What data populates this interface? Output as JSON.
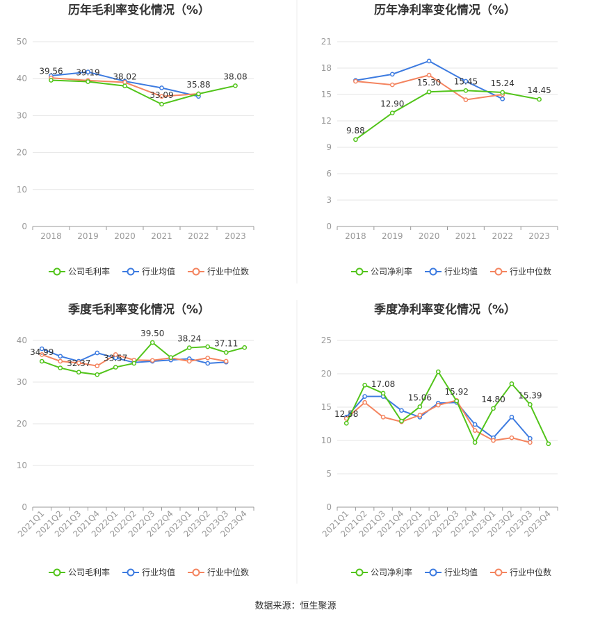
{
  "source": "数据来源：恒生聚源",
  "colors": {
    "company": "#52c41a",
    "industry_avg": "#3d7be0",
    "industry_median": "#f4845f",
    "grid": "#e6e6e6",
    "axis": "#999999",
    "divider": "#eeeeee"
  },
  "chart_data": [
    {
      "type": "line",
      "title": "历年毛利率变化情况（%）",
      "categories": [
        "2018",
        "2019",
        "2020",
        "2021",
        "2022",
        "2023"
      ],
      "ylim": [
        0,
        50
      ],
      "yticks": [
        0,
        10,
        20,
        30,
        40,
        50
      ],
      "grid": true,
      "legend_position": "bottom",
      "series": [
        {
          "name": "公司毛利率",
          "key": "company",
          "values": [
            39.56,
            39.19,
            38.02,
            33.09,
            35.88,
            38.08
          ]
        },
        {
          "name": "行业均值",
          "key": "industry_avg",
          "values": [
            40.8,
            41.8,
            39.3,
            37.5,
            35.2,
            null
          ]
        },
        {
          "name": "行业中位数",
          "key": "industry_median",
          "values": [
            40.2,
            39.5,
            39.0,
            35.2,
            35.9,
            null
          ]
        }
      ],
      "data_labels": [
        {
          "index": 0,
          "text": "39.56"
        },
        {
          "index": 1,
          "text": "39.19"
        },
        {
          "index": 2,
          "text": "38.02"
        },
        {
          "index": 3,
          "text": "33.09"
        },
        {
          "index": 4,
          "text": "35.88"
        },
        {
          "index": 5,
          "text": "38.08"
        }
      ]
    },
    {
      "type": "line",
      "title": "历年净利率变化情况（%）",
      "categories": [
        "2018",
        "2019",
        "2020",
        "2021",
        "2022",
        "2023"
      ],
      "ylim": [
        0,
        21
      ],
      "yticks": [
        0,
        3,
        6,
        9,
        12,
        15,
        18,
        21
      ],
      "grid": true,
      "legend_position": "bottom",
      "series": [
        {
          "name": "公司净利率",
          "key": "company",
          "values": [
            9.88,
            12.9,
            15.3,
            15.45,
            15.24,
            14.45
          ]
        },
        {
          "name": "行业均值",
          "key": "industry_avg",
          "values": [
            16.6,
            17.3,
            18.8,
            16.5,
            14.5,
            null
          ]
        },
        {
          "name": "行业中位数",
          "key": "industry_median",
          "values": [
            16.5,
            16.1,
            17.2,
            14.4,
            15.0,
            null
          ]
        }
      ],
      "data_labels": [
        {
          "index": 0,
          "text": "9.88"
        },
        {
          "index": 1,
          "text": "12.90"
        },
        {
          "index": 2,
          "text": "15.30"
        },
        {
          "index": 3,
          "text": "15.45"
        },
        {
          "index": 4,
          "text": "15.24"
        },
        {
          "index": 5,
          "text": "14.45"
        }
      ]
    },
    {
      "type": "line",
      "title": "季度毛利率变化情况（%）",
      "categories": [
        "2021Q1",
        "2021Q2",
        "2021Q3",
        "2021Q4",
        "2022Q1",
        "2022Q2",
        "2022Q3",
        "2022Q4",
        "2023Q1",
        "2023Q2",
        "2023Q3",
        "2023Q4"
      ],
      "ylim": [
        0,
        40
      ],
      "yticks": [
        0,
        10,
        20,
        30,
        40
      ],
      "grid": true,
      "legend_position": "bottom",
      "series": [
        {
          "name": "公司毛利率",
          "key": "company",
          "values": [
            34.99,
            33.4,
            32.37,
            31.8,
            33.57,
            34.5,
            39.5,
            35.9,
            38.24,
            38.5,
            37.11,
            38.3
          ]
        },
        {
          "name": "行业均值",
          "key": "industry_avg",
          "values": [
            38.0,
            36.2,
            35.0,
            37.0,
            35.8,
            34.7,
            35.0,
            35.3,
            35.6,
            34.5,
            34.8,
            null
          ]
        },
        {
          "name": "行业中位数",
          "key": "industry_median",
          "values": [
            36.6,
            35.0,
            34.6,
            33.9,
            36.6,
            35.3,
            35.2,
            35.8,
            35.0,
            35.8,
            35.0,
            null
          ]
        }
      ],
      "data_labels": [
        {
          "index": 0,
          "text": "34.99"
        },
        {
          "index": 2,
          "text": "32.37"
        },
        {
          "index": 4,
          "text": "33.57"
        },
        {
          "index": 6,
          "text": "39.50"
        },
        {
          "index": 8,
          "text": "38.24"
        },
        {
          "index": 10,
          "text": "37.11"
        }
      ]
    },
    {
      "type": "line",
      "title": "季度净利率变化情况（%）",
      "categories": [
        "2021Q1",
        "2021Q2",
        "2021Q3",
        "2021Q4",
        "2022Q1",
        "2022Q2",
        "2022Q3",
        "2022Q4",
        "2023Q1",
        "2023Q2",
        "2023Q3",
        "2023Q4"
      ],
      "ylim": [
        0,
        25
      ],
      "yticks": [
        0,
        5,
        10,
        15,
        20,
        25
      ],
      "grid": true,
      "legend_position": "bottom",
      "series": [
        {
          "name": "公司净利率",
          "key": "company",
          "values": [
            12.58,
            18.3,
            17.08,
            12.9,
            15.06,
            20.3,
            15.92,
            9.7,
            14.8,
            18.5,
            15.39,
            9.5
          ]
        },
        {
          "name": "行业均值",
          "key": "industry_avg",
          "values": [
            13.5,
            16.6,
            16.6,
            14.5,
            13.5,
            15.6,
            15.7,
            12.4,
            10.4,
            13.5,
            10.3,
            null
          ]
        },
        {
          "name": "行业中位数",
          "key": "industry_median",
          "values": [
            13.3,
            15.7,
            13.5,
            12.8,
            13.8,
            15.3,
            16.0,
            11.5,
            10.0,
            10.4,
            9.7,
            null
          ]
        }
      ],
      "data_labels": [
        {
          "index": 0,
          "text": "12.58"
        },
        {
          "index": 2,
          "text": "17.08"
        },
        {
          "index": 4,
          "text": "15.06"
        },
        {
          "index": 6,
          "text": "15.92"
        },
        {
          "index": 8,
          "text": "14.80"
        },
        {
          "index": 10,
          "text": "15.39"
        }
      ]
    }
  ]
}
